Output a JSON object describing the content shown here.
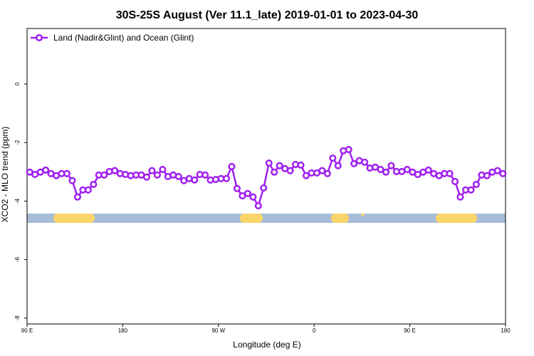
{
  "chart_data": {
    "type": "line",
    "title": "30S-25S August (Ver 11.1_late)   2019-01-01 to 2023-04-30",
    "xlabel": "Longitude (deg E)",
    "ylabel": "XCO2 - MLO trend (ppm)",
    "xlim": [
      90,
      540
    ],
    "ylim": [
      -8.2,
      1.9
    ],
    "xticks": [
      {
        "value": 90,
        "label": "90 E"
      },
      {
        "value": 180,
        "label": "180"
      },
      {
        "value": 270,
        "label": "90 W"
      },
      {
        "value": 360,
        "label": "0"
      },
      {
        "value": 450,
        "label": "90 E"
      },
      {
        "value": 540,
        "label": "180"
      }
    ],
    "yticks": [
      0,
      -2,
      -4,
      -6,
      -8
    ],
    "legend": "top-left",
    "x": [
      92.5,
      97.5,
      102.5,
      107.5,
      112.5,
      117.5,
      122.5,
      127.5,
      132.5,
      137.5,
      142.5,
      147.5,
      152.5,
      157.5,
      162.5,
      167.5,
      172.5,
      177.5,
      182.5,
      187.5,
      192.5,
      197.5,
      202.5,
      207.5,
      212.5,
      217.5,
      222.5,
      227.5,
      232.5,
      237.5,
      242.5,
      247.5,
      252.5,
      257.5,
      262.5,
      267.5,
      272.5,
      277.5,
      282.5,
      287.5,
      292.5,
      297.5,
      302.5,
      307.5,
      312.5,
      317.5,
      322.5,
      327.5,
      332.5,
      337.5,
      342.5,
      347.5,
      352.5,
      357.5,
      362.5,
      367.5,
      372.5,
      377.5,
      382.5,
      387.5,
      392.5,
      397.5,
      402.5,
      407.5,
      412.5,
      417.5,
      422.5,
      427.5,
      432.5,
      437.5,
      442.5,
      447.5,
      452.5,
      457.5,
      462.5,
      467.5,
      472.5,
      477.5,
      482.5,
      487.5,
      492.5,
      497.5,
      502.5,
      507.5,
      512.5,
      517.5,
      522.5,
      527.5,
      532.5,
      537.5
    ],
    "series": [
      {
        "name": "Land (Nadir&Glint) and Ocean (Glint)",
        "color": "#a020f0",
        "values": [
          -3.01,
          -3.09,
          -3.01,
          -2.94,
          -3.06,
          -3.13,
          -3.06,
          -3.06,
          -3.3,
          -3.86,
          -3.62,
          -3.62,
          -3.43,
          -3.11,
          -3.11,
          -2.99,
          -2.96,
          -3.06,
          -3.09,
          -3.13,
          -3.11,
          -3.11,
          -3.18,
          -2.96,
          -3.11,
          -2.92,
          -3.16,
          -3.11,
          -3.16,
          -3.3,
          -3.23,
          -3.28,
          -3.09,
          -3.11,
          -3.28,
          -3.26,
          -3.23,
          -3.23,
          -2.82,
          -3.57,
          -3.82,
          -3.74,
          -3.86,
          -4.16,
          -3.55,
          -2.7,
          -3.01,
          -2.79,
          -2.89,
          -2.96,
          -2.75,
          -2.77,
          -3.13,
          -3.04,
          -3.04,
          -2.96,
          -3.06,
          -2.53,
          -2.79,
          -2.28,
          -2.24,
          -2.72,
          -2.62,
          -2.67,
          -2.87,
          -2.84,
          -2.92,
          -3.01,
          -2.79,
          -2.99,
          -2.99,
          -2.92,
          -3.01,
          -3.09,
          -3.01,
          -2.94,
          -3.06,
          -3.13,
          -3.06,
          -3.06,
          -3.33,
          -3.86,
          -3.62,
          -3.62,
          -3.43,
          -3.11,
          -3.13,
          -3.01,
          -2.96,
          -3.06
        ]
      }
    ]
  }
}
